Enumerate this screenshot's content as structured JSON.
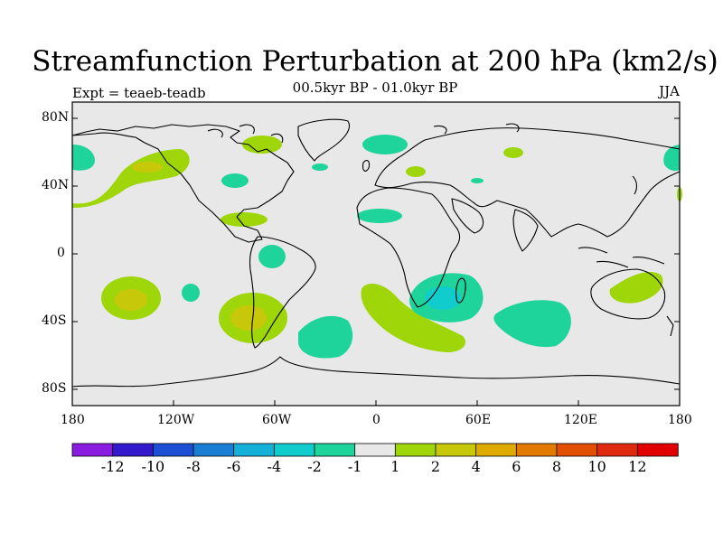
{
  "title": "Streamfunction Perturbation at 200 hPa (km2/s)",
  "subtitle": "00.5kyr BP - 01.0kyr BP",
  "experiment": "Expt = teaeb-teadb",
  "season": "JJA",
  "axes": {
    "y_ticks": [
      "80N",
      "40N",
      "0",
      "40S",
      "80S"
    ],
    "x_ticks": [
      "180",
      "120W",
      "60W",
      "0",
      "60E",
      "120E",
      "180"
    ]
  },
  "colorbar": {
    "colors": [
      "#8a1ce0",
      "#3319cc",
      "#1c4fd4",
      "#1a7ed4",
      "#14b0d8",
      "#10cccc",
      "#1fd49a",
      "#e8e8e8",
      "#9fd60a",
      "#c8c80a",
      "#e0ab00",
      "#e27a00",
      "#e05000",
      "#e02a10",
      "#e00000"
    ],
    "labels": [
      "-12",
      "-10",
      "-8",
      "-6",
      "-4",
      "-2",
      "-1",
      "1",
      "2",
      "4",
      "6",
      "8",
      "10",
      "12"
    ]
  },
  "map_colors": {
    "background": "#e8e8e8",
    "neg_light": "#1fd49a",
    "neg_mid": "#10cccc",
    "pos_light": "#9fd60a",
    "pos_mid": "#c8c80a"
  }
}
